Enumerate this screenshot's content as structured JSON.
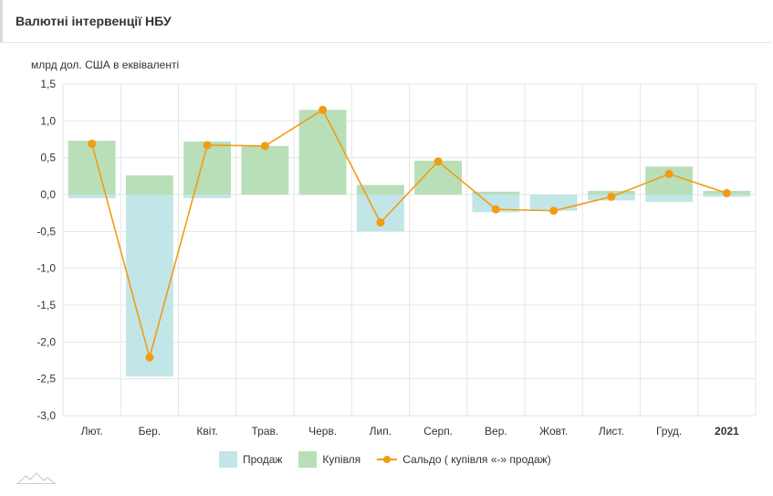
{
  "header": {
    "title": "Валютні інтервенції НБУ"
  },
  "chart_data": {
    "type": "bar",
    "ylabel": "млрд дол. США в еквіваленті",
    "ylim": [
      -3.0,
      1.5
    ],
    "yticks": [
      "1,5",
      "1,0",
      "0,5",
      "0,0",
      "-0,5",
      "-1,0",
      "-1,5",
      "-2,0",
      "-2,5",
      "-3,0"
    ],
    "ytick_values": [
      1.5,
      1.0,
      0.5,
      0.0,
      -0.5,
      -1.0,
      -1.5,
      -2.0,
      -2.5,
      -3.0
    ],
    "categories": [
      "Лют.",
      "Бер.",
      "Квіт.",
      "Трав.",
      "Черв.",
      "Лип.",
      "Серп.",
      "Вер.",
      "Жовт.",
      "Лист.",
      "Груд.",
      "2021"
    ],
    "grid": true,
    "legend_position": "bottom",
    "series": [
      {
        "name": "Продаж",
        "type": "bar",
        "color": "#c2e6e8",
        "values": [
          -0.05,
          -2.47,
          -0.05,
          0.0,
          0.0,
          -0.5,
          0.0,
          -0.24,
          -0.22,
          -0.08,
          -0.1,
          -0.03
        ]
      },
      {
        "name": "Купівля",
        "type": "bar",
        "color": "#b8dfb8",
        "values": [
          0.73,
          0.26,
          0.72,
          0.66,
          1.15,
          0.13,
          0.46,
          0.04,
          0.0,
          0.05,
          0.38,
          0.05
        ]
      },
      {
        "name": "Сальдо ( купівля «-» продаж)",
        "type": "line",
        "color": "#f39c12",
        "values": [
          0.69,
          -2.21,
          0.67,
          0.66,
          1.15,
          -0.38,
          0.45,
          -0.2,
          -0.22,
          -0.03,
          0.28,
          0.02
        ]
      }
    ]
  }
}
